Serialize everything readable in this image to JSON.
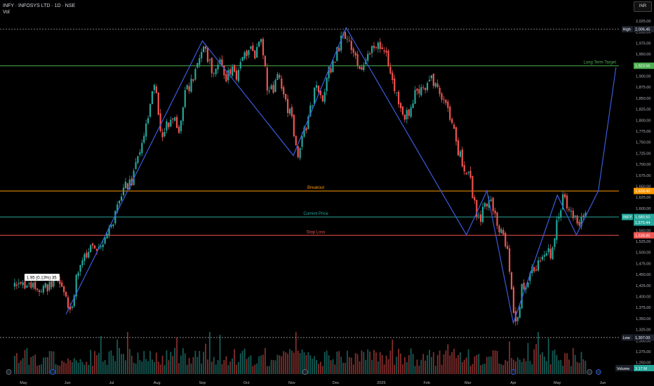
{
  "header": {
    "symbol_line": "INFY · INFOSYS LTD · 1D · NSE",
    "vol_label": "Vol",
    "currency_button": "INR"
  },
  "colors": {
    "background": "#000000",
    "up_candle": "#26a69a",
    "down_candle": "#ef5350",
    "pattern_line": "#3b5bdb",
    "long_term_target": "#4caf50",
    "breakout": "#ff9800",
    "current_price": "#26a69a",
    "stop_loss": "#ef5350",
    "high_low_lines": "#9e9e9e"
  },
  "chart_data": {
    "type": "candlestick",
    "symbol": "INFY",
    "ylim": [
      1240,
      2060
    ],
    "y_ticks": [
      "2,050.00",
      "2,025.00",
      "2,000.00",
      "1,975.00",
      "1,950.00",
      "1,925.00",
      "1,900.00",
      "1,875.00",
      "1,850.00",
      "1,825.00",
      "1,800.00",
      "1,775.00",
      "1,750.00",
      "1,725.00",
      "1,700.00",
      "1,675.00",
      "1,650.00",
      "1,625.00",
      "1,600.00",
      "1,575.00",
      "1,550.00",
      "1,525.00",
      "1,500.00",
      "1,475.00",
      "1,450.00",
      "1,425.00",
      "1,400.00",
      "1,375.00",
      "1,350.00",
      "1,325.00",
      "1,300.00",
      "1,275.00",
      "1,250.00"
    ],
    "x_ticks": [
      {
        "label": "May",
        "day": 6
      },
      {
        "label": "Jun",
        "day": 36
      },
      {
        "label": "Jul",
        "day": 66
      },
      {
        "label": "Aug",
        "day": 97
      },
      {
        "label": "Sep",
        "day": 128
      },
      {
        "label": "Oct",
        "day": 158
      },
      {
        "label": "Nov",
        "day": 189
      },
      {
        "label": "Dec",
        "day": 219
      },
      {
        "label": "2025",
        "day": 250
      },
      {
        "label": "Feb",
        "day": 281
      },
      {
        "label": "Mar",
        "day": 309
      },
      {
        "label": "Apr",
        "day": 340
      },
      {
        "label": "May",
        "day": 370
      },
      {
        "label": "Jun",
        "day": 401
      }
    ],
    "day_range": [
      -10,
      412
    ],
    "price_path": [
      [
        0,
        1420
      ],
      [
        8,
        1430
      ],
      [
        16,
        1410
      ],
      [
        24,
        1425
      ],
      [
        30,
        1440
      ],
      [
        34,
        1400
      ],
      [
        38,
        1360
      ],
      [
        42,
        1440
      ],
      [
        48,
        1490
      ],
      [
        54,
        1510
      ],
      [
        60,
        1530
      ],
      [
        64,
        1540
      ],
      [
        68,
        1580
      ],
      [
        72,
        1620
      ],
      [
        76,
        1650
      ],
      [
        80,
        1660
      ],
      [
        84,
        1720
      ],
      [
        88,
        1760
      ],
      [
        92,
        1830
      ],
      [
        96,
        1880
      ],
      [
        100,
        1760
      ],
      [
        104,
        1790
      ],
      [
        108,
        1810
      ],
      [
        112,
        1770
      ],
      [
        116,
        1860
      ],
      [
        120,
        1880
      ],
      [
        124,
        1910
      ],
      [
        128,
        1960
      ],
      [
        132,
        1940
      ],
      [
        136,
        1900
      ],
      [
        140,
        1950
      ],
      [
        144,
        1890
      ],
      [
        148,
        1920
      ],
      [
        152,
        1900
      ],
      [
        156,
        1940
      ],
      [
        160,
        1960
      ],
      [
        164,
        1950
      ],
      [
        168,
        1980
      ],
      [
        172,
        1880
      ],
      [
        176,
        1860
      ],
      [
        180,
        1900
      ],
      [
        184,
        1840
      ],
      [
        188,
        1820
      ],
      [
        190,
        1770
      ],
      [
        194,
        1720
      ],
      [
        198,
        1780
      ],
      [
        202,
        1830
      ],
      [
        206,
        1880
      ],
      [
        210,
        1850
      ],
      [
        214,
        1910
      ],
      [
        218,
        1930
      ],
      [
        222,
        1980
      ],
      [
        226,
        2000
      ],
      [
        230,
        1970
      ],
      [
        234,
        1910
      ],
      [
        238,
        1920
      ],
      [
        242,
        1950
      ],
      [
        246,
        1980
      ],
      [
        250,
        1960
      ],
      [
        254,
        1950
      ],
      [
        258,
        1880
      ],
      [
        262,
        1830
      ],
      [
        266,
        1800
      ],
      [
        270,
        1830
      ],
      [
        274,
        1880
      ],
      [
        278,
        1860
      ],
      [
        282,
        1900
      ],
      [
        286,
        1880
      ],
      [
        290,
        1860
      ],
      [
        294,
        1840
      ],
      [
        298,
        1800
      ],
      [
        302,
        1730
      ],
      [
        306,
        1700
      ],
      [
        310,
        1680
      ],
      [
        313,
        1620
      ],
      [
        316,
        1570
      ],
      [
        320,
        1600
      ],
      [
        324,
        1630
      ],
      [
        328,
        1580
      ],
      [
        332,
        1540
      ],
      [
        336,
        1520
      ],
      [
        339,
        1400
      ],
      [
        342,
        1330
      ],
      [
        346,
        1420
      ],
      [
        350,
        1440
      ],
      [
        354,
        1460
      ],
      [
        358,
        1480
      ],
      [
        362,
        1500
      ],
      [
        366,
        1500
      ],
      [
        370,
        1580
      ],
      [
        374,
        1620
      ],
      [
        378,
        1600
      ],
      [
        382,
        1580
      ],
      [
        386,
        1570
      ],
      [
        388,
        1578
      ],
      [
        390,
        1580
      ]
    ],
    "volume_seed": 42,
    "pattern_polyline": [
      [
        35,
        1360
      ],
      [
        128,
        1980
      ],
      [
        190,
        1720
      ],
      [
        226,
        2010
      ],
      [
        308,
        1540
      ],
      [
        322,
        1640
      ],
      [
        340,
        1340
      ],
      [
        370,
        1630
      ],
      [
        383,
        1540
      ],
      [
        398,
        1640
      ],
      [
        410,
        1920
      ]
    ],
    "levels": [
      {
        "name": "Long Term Target",
        "value": 1923.55,
        "label": "Long Term Target",
        "badge": "1,923.55",
        "color": "#4caf50",
        "dashed": false
      },
      {
        "name": "Breakout",
        "value": 1639.4,
        "label": "Breakout",
        "badge": "1,639.40",
        "color": "#ff9800",
        "dashed": false
      },
      {
        "name": "Current Price",
        "value": 1580.5,
        "label": "Current Price",
        "badge": "1,580.50",
        "color": "#26a69a",
        "dashed": false
      },
      {
        "name": "Stop Loss",
        "value": 1538.85,
        "label": "Stop Loss",
        "badge": "1,538.85",
        "color": "#ef5350",
        "dashed": false
      }
    ],
    "high": {
      "label": "High",
      "value": 2006.45,
      "badge": "2,006.45"
    },
    "low": {
      "label": "Low",
      "value": 1307.0,
      "badge": "1,307.00"
    },
    "last_price_tag": {
      "symbol": "INFY",
      "value": "1,580.50",
      "sub": "1,575.44"
    },
    "volume_tag": {
      "label": "Volume",
      "value": "3.17 M"
    },
    "tooltip": {
      "text": "1.95 (0.13%) 35",
      "x_day": 0,
      "y_price": 1442
    }
  }
}
